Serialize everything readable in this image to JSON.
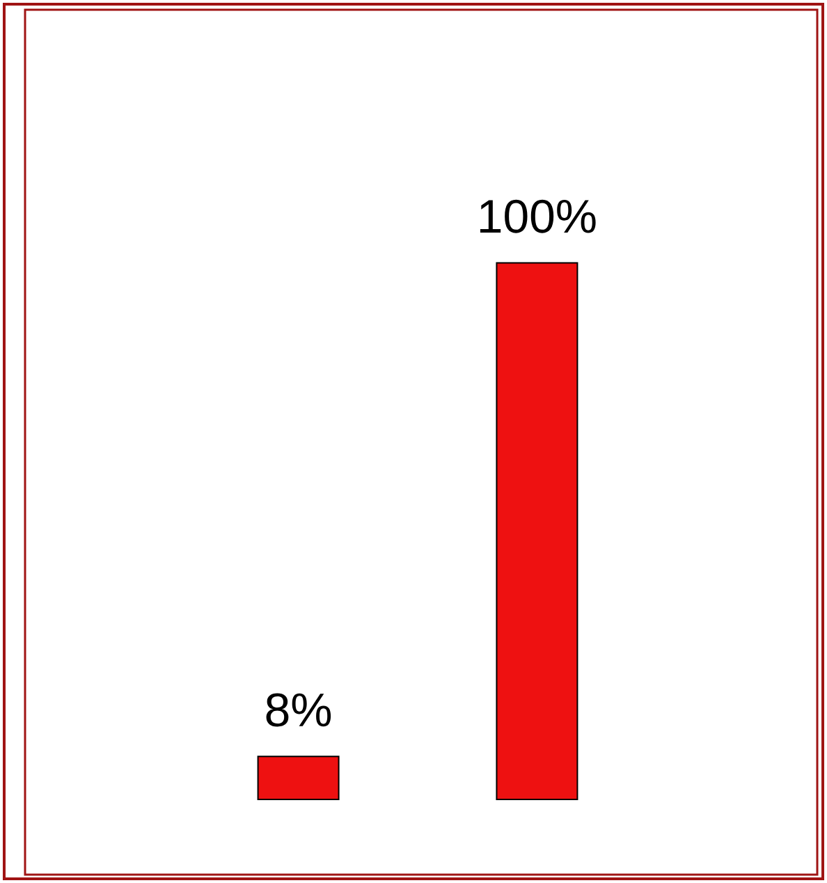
{
  "chart_data": {
    "type": "bar",
    "categories": [
      null,
      null
    ],
    "values": [
      8,
      100
    ],
    "color": "#ee1111",
    "value_labels": [
      "8%",
      "100%"
    ]
  }
}
